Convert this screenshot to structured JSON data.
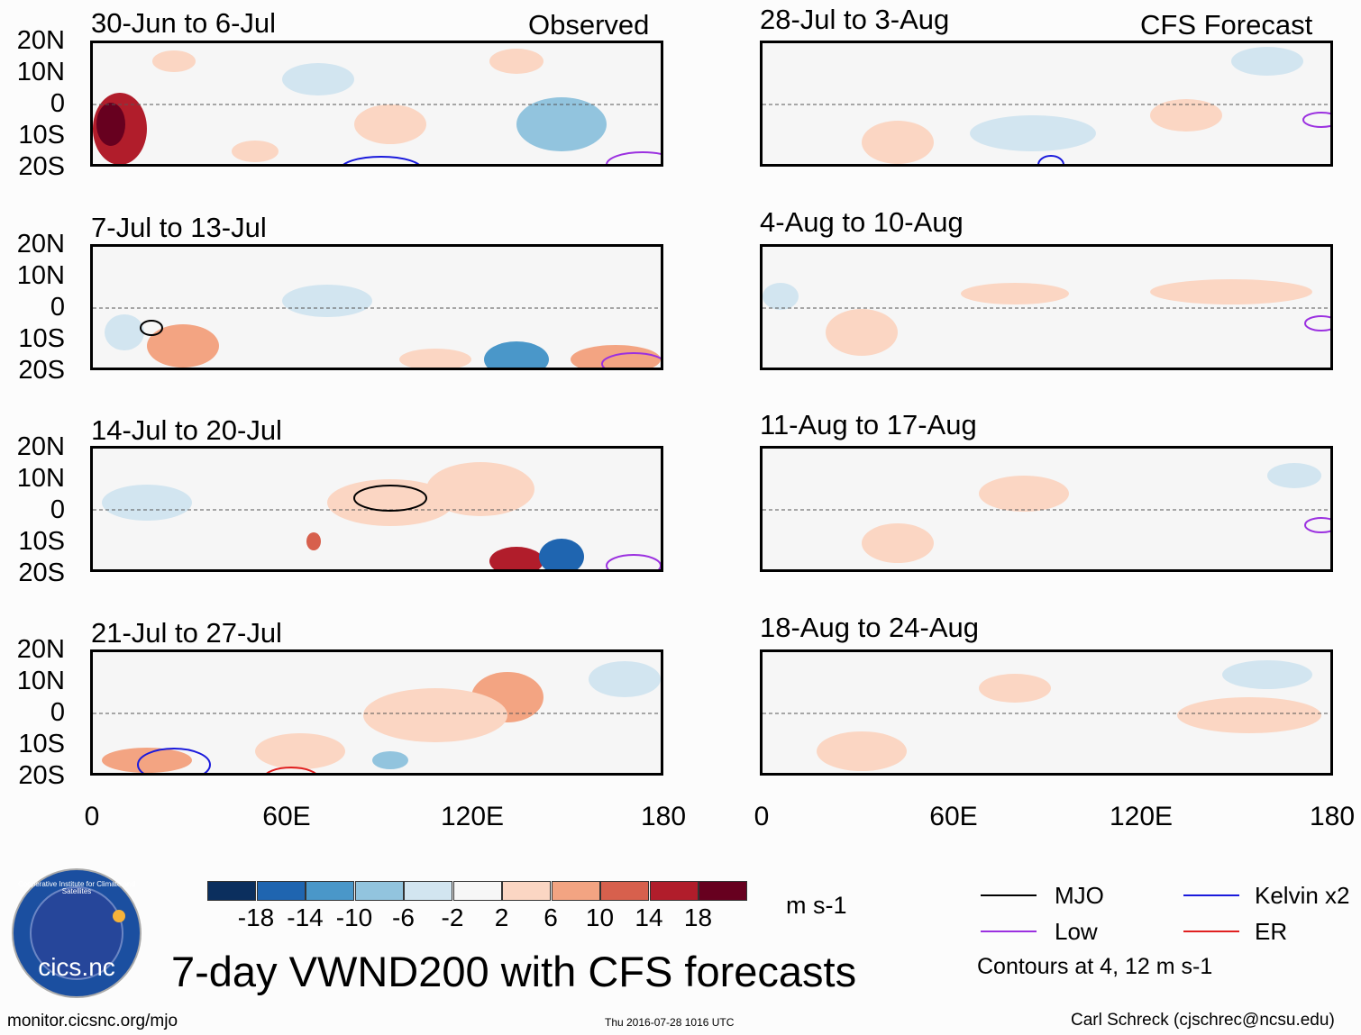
{
  "observed_label": "Observed",
  "forecast_label": "CFS Forecast",
  "lat_labels": [
    "20N",
    "10N",
    "0",
    "10S",
    "20S"
  ],
  "lon_labels": [
    "0",
    "60E",
    "120E",
    "180"
  ],
  "panels_left": [
    {
      "title": "30-Jun to 6-Jul"
    },
    {
      "title": "7-Jul to 13-Jul"
    },
    {
      "title": "14-Jul to 20-Jul"
    },
    {
      "title": "21-Jul to 27-Jul"
    }
  ],
  "panels_right": [
    {
      "title": "28-Jul to 3-Aug"
    },
    {
      "title": "4-Aug to 10-Aug"
    },
    {
      "title": "11-Aug to 17-Aug"
    },
    {
      "title": "18-Aug to 24-Aug"
    }
  ],
  "colorbar": {
    "colors": [
      "#0b2f5e",
      "#1f65b0",
      "#4a97c9",
      "#92c4de",
      "#d2e5f0",
      "#f7f7f7",
      "#fbd6c3",
      "#f3a482",
      "#d7604d",
      "#b11d2b",
      "#67001f"
    ],
    "labels": [
      "-18",
      "-14",
      "-10",
      "-6",
      "-2",
      "2",
      "6",
      "10",
      "14",
      "18"
    ],
    "units": "m s-1"
  },
  "legend": {
    "items": [
      {
        "label": "MJO",
        "color": "#000000"
      },
      {
        "label": "Kelvin x2",
        "color": "#1a1adc"
      },
      {
        "label": "Low",
        "color": "#9b30e0"
      },
      {
        "label": "ER",
        "color": "#e02020"
      }
    ],
    "note": "Contours at 4, 12 m s-1"
  },
  "logo_text": "cics.nc",
  "logo_ring_text": "Cooperative Institute for Climate and Satellites",
  "main_title": "7-day VWND200 with CFS forecasts",
  "footer": {
    "url": "monitor.cicsnc.org/mjo",
    "timestamp": "Thu 2016-07-28 1016 UTC",
    "author": "Carl Schreck (cjschrec@ncsu.edu)"
  }
}
